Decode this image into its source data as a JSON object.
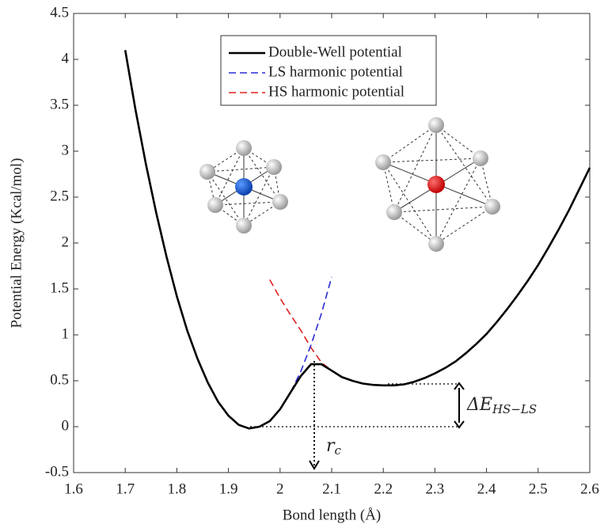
{
  "chart_data": {
    "type": "line",
    "x_label": "Bond length (Å)",
    "y_label": "Potential Energy (Kcal/mol)",
    "x": [
      1.7,
      1.72,
      1.74,
      1.76,
      1.78,
      1.8,
      1.82,
      1.84,
      1.86,
      1.88,
      1.9,
      1.92,
      1.94,
      1.96,
      1.98,
      2.0,
      2.02,
      2.04,
      2.06,
      2.08,
      2.1,
      2.12,
      2.14,
      2.16,
      2.18,
      2.2,
      2.22,
      2.24,
      2.26,
      2.28,
      2.3,
      2.32,
      2.34,
      2.36,
      2.38,
      2.4,
      2.42,
      2.44,
      2.46,
      2.48,
      2.5,
      2.52,
      2.54,
      2.56,
      2.58,
      2.6
    ],
    "series": [
      {
        "name": "Double-Well potential",
        "color": "#000000",
        "dashed": false,
        "values": [
          4.1,
          3.45,
          2.86,
          2.33,
          1.85,
          1.42,
          1.05,
          0.74,
          0.48,
          0.27,
          0.12,
          0.02,
          -0.02,
          0.0,
          0.06,
          0.19,
          0.37,
          0.55,
          0.68,
          0.68,
          0.61,
          0.54,
          0.5,
          0.47,
          0.455,
          0.45,
          0.45,
          0.46,
          0.49,
          0.53,
          0.58,
          0.64,
          0.71,
          0.8,
          0.9,
          1.01,
          1.14,
          1.28,
          1.43,
          1.59,
          1.76,
          1.95,
          2.15,
          2.36,
          2.59,
          2.82
        ]
      },
      {
        "name": "LS harmonic potential",
        "color": "#2b2bd6",
        "dashed": true,
        "values": [
          4.1,
          3.45,
          2.86,
          2.33,
          1.85,
          1.42,
          1.05,
          0.74,
          0.48,
          0.27,
          0.12,
          0.02,
          -0.02,
          0.0,
          0.06,
          0.19,
          0.37,
          0.6,
          0.89,
          1.23,
          1.63,
          null,
          null,
          null,
          null,
          null,
          null,
          null,
          null,
          null,
          null,
          null,
          null,
          null,
          null,
          null,
          null,
          null,
          null,
          null,
          null,
          null,
          null,
          null,
          null,
          null
        ]
      },
      {
        "name": "HS harmonic potential",
        "color": "#e02020",
        "dashed": true,
        "values": [
          null,
          null,
          null,
          null,
          null,
          null,
          null,
          null,
          null,
          null,
          null,
          null,
          null,
          null,
          1.6,
          1.4,
          1.22,
          1.05,
          0.86,
          0.7,
          0.61,
          0.54,
          0.5,
          0.47,
          0.455,
          0.45,
          0.45,
          0.46,
          0.49,
          0.53,
          0.58,
          0.64,
          0.71,
          0.8,
          0.9,
          1.01,
          1.14,
          1.28,
          1.43,
          1.59,
          1.76,
          1.95,
          2.15,
          2.36,
          2.59,
          2.82
        ]
      }
    ],
    "xlim": [
      1.6,
      2.6
    ],
    "xticks": [
      1.6,
      1.7,
      1.8,
      1.9,
      2,
      2.1,
      2.2,
      2.3,
      2.4,
      2.5,
      2.6
    ],
    "ylim": [
      -0.5,
      4.5
    ],
    "yticks": [
      -0.5,
      0,
      0.5,
      1,
      1.5,
      2,
      2.5,
      3,
      3.5,
      4,
      4.5
    ],
    "legend": "top",
    "annotations": [
      {
        "main": "ΔE",
        "sub": "HS−LS"
      },
      {
        "main": "r",
        "sub": "c"
      }
    ]
  }
}
